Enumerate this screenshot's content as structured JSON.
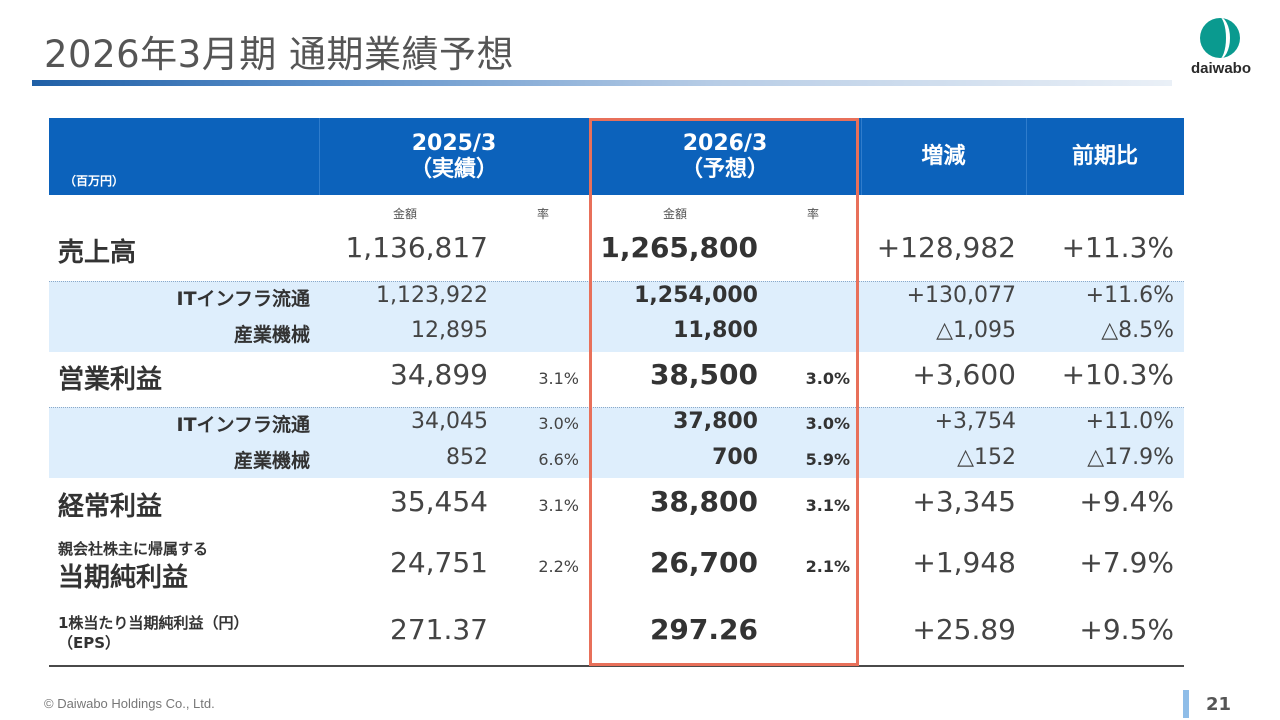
{
  "title": "2026年3月期 通期業績予想",
  "logo_text": "daiwabo",
  "table": {
    "unit": "（百万円）",
    "col1": {
      "line1": "2025/3",
      "line2": "（実績）"
    },
    "col2": {
      "line1": "2026/3",
      "line2": "（予想）"
    },
    "col3": "増減",
    "col4": "前期比",
    "sub_amount": "金額",
    "sub_rate": "率",
    "rows": [
      {
        "label": "売上高",
        "v2025": "1,136,817",
        "r2025": "",
        "v2026": "1,265,800",
        "r2026": "",
        "diff": "+128,982",
        "ratio": "+11.3%"
      },
      {
        "label": "ITインフラ流通",
        "v2025": "1,123,922",
        "r2025": "",
        "v2026": "1,254,000",
        "r2026": "",
        "diff": "+130,077",
        "ratio": "+11.6%"
      },
      {
        "label": "産業機械",
        "v2025": "12,895",
        "r2025": "",
        "v2026": "11,800",
        "r2026": "",
        "diff": "△1,095",
        "ratio": "△8.5%"
      },
      {
        "label": "営業利益",
        "v2025": "34,899",
        "r2025": "3.1%",
        "v2026": "38,500",
        "r2026": "3.0%",
        "diff": "+3,600",
        "ratio": "+10.3%"
      },
      {
        "label": "ITインフラ流通",
        "v2025": "34,045",
        "r2025": "3.0%",
        "v2026": "37,800",
        "r2026": "3.0%",
        "diff": "+3,754",
        "ratio": "+11.0%"
      },
      {
        "label": "産業機械",
        "v2025": "852",
        "r2025": "6.6%",
        "v2026": "700",
        "r2026": "5.9%",
        "diff": "△152",
        "ratio": "△17.9%"
      },
      {
        "label": "経常利益",
        "v2025": "35,454",
        "r2025": "3.1%",
        "v2026": "38,800",
        "r2026": "3.1%",
        "diff": "+3,345",
        "ratio": "+9.4%"
      },
      {
        "label_small": "親会社株主に帰属する",
        "label": "当期純利益",
        "v2025": "24,751",
        "r2025": "2.2%",
        "v2026": "26,700",
        "r2026": "2.1%",
        "diff": "+1,948",
        "ratio": "+7.9%"
      },
      {
        "label_line1": "1株当たり当期純利益（円）",
        "label_line2": "（EPS）",
        "v2025": "271.37",
        "r2025": "",
        "v2026": "297.26",
        "r2026": "",
        "diff": "+25.89",
        "ratio": "+9.5%"
      }
    ]
  },
  "footer": "© Daiwabo Holdings Co., Ltd.",
  "page_number": "21",
  "colors": {
    "header_bg": "#0c62bb",
    "band_bg": "#deeefc",
    "highlight": "#e8705a",
    "logo": "#0a9a8f"
  }
}
